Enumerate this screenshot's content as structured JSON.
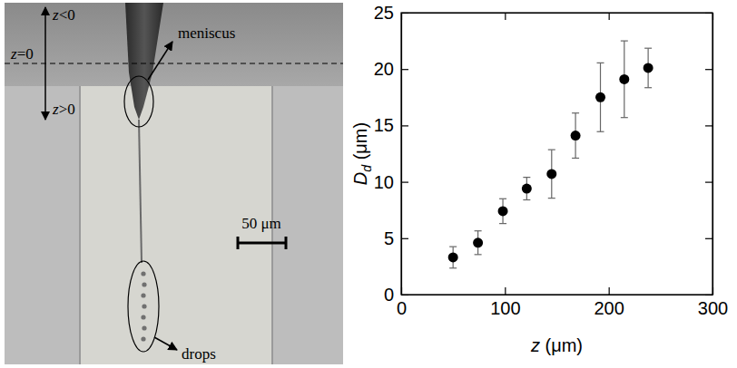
{
  "chart_data": {
    "type": "scatter",
    "x": [
      50,
      74,
      98,
      121,
      145,
      168,
      192,
      215,
      238
    ],
    "values": [
      3.3,
      4.6,
      7.4,
      9.4,
      10.7,
      14.1,
      17.5,
      19.1,
      20.1
    ],
    "errors": [
      0.95,
      1.05,
      1.1,
      1.0,
      2.15,
      2.0,
      3.05,
      3.4,
      1.75
    ],
    "x_label": "z (μm)",
    "y_label": "Dd (μm)",
    "xlim": [
      0,
      300
    ],
    "ylim": [
      0,
      25
    ],
    "xticks": [
      0,
      100,
      200,
      300
    ],
    "yticks": [
      0,
      5,
      10,
      15,
      20,
      25
    ],
    "color": "#000000",
    "marker": "circle"
  },
  "image_panel": {
    "labels": {
      "z_negative": "z<0",
      "z_zero": "z=0",
      "z_positive": "z>0",
      "meniscus": "meniscus",
      "scale_bar": "50 μm",
      "drops": "drops"
    }
  }
}
